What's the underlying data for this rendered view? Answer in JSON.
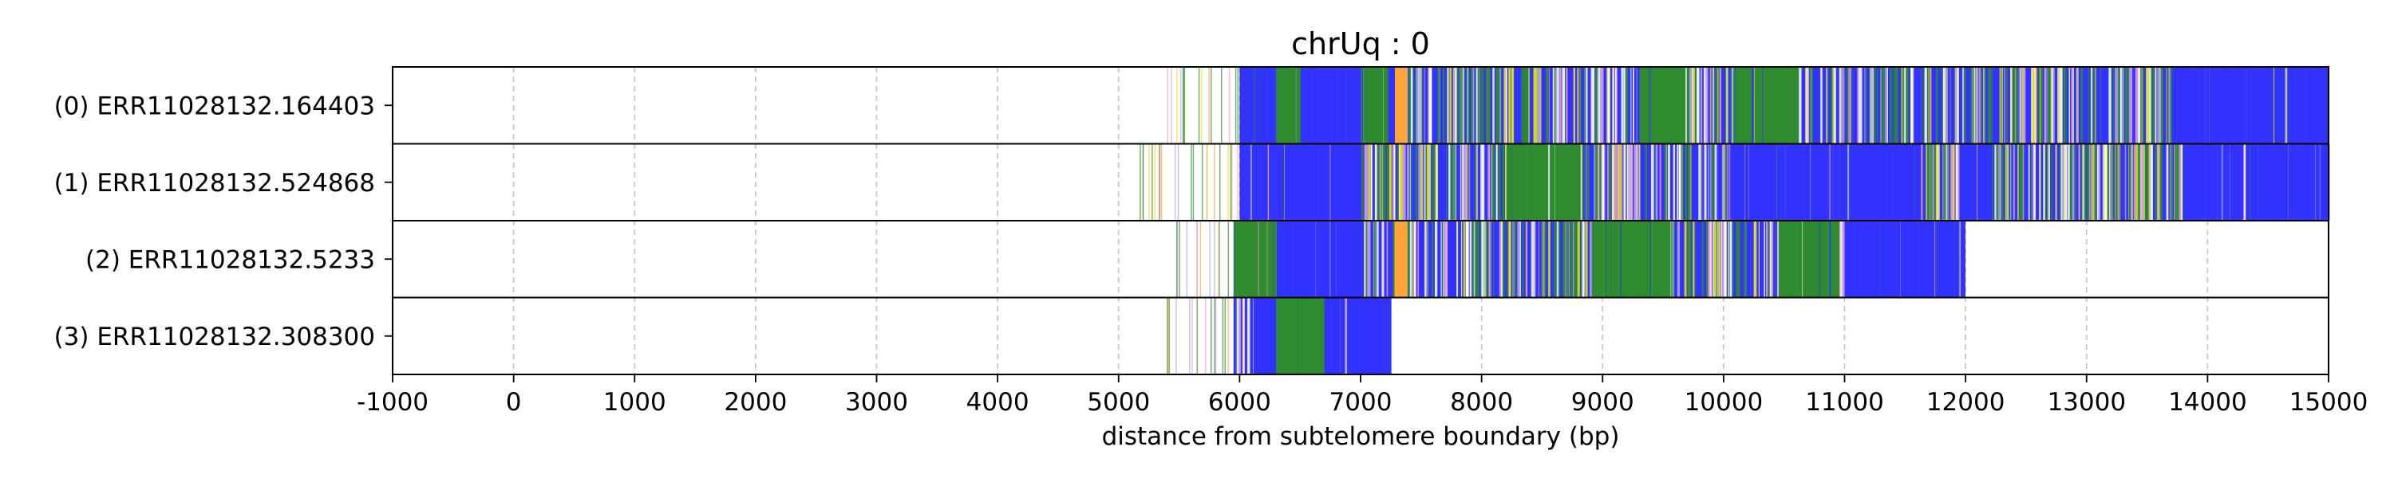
{
  "chart_data": {
    "type": "heatmap",
    "title": "chrUq : 0",
    "xlabel": "distance from subtelomere boundary (bp)",
    "ylabel": "",
    "xlim": [
      -1000,
      15000
    ],
    "xticks": [
      -1000,
      0,
      1000,
      2000,
      3000,
      4000,
      5000,
      6000,
      7000,
      8000,
      9000,
      10000,
      11000,
      12000,
      13000,
      14000,
      15000
    ],
    "grid": true,
    "rows": [
      {
        "label": "(0) ERR11028132.164403",
        "read_extent": [
          5400,
          15000
        ],
        "base_color_from": 6000,
        "segments": [
          {
            "from": 6000,
            "to": 6300,
            "color": "#3333ff"
          },
          {
            "from": 6300,
            "to": 6500,
            "color": "#2e8b2e"
          },
          {
            "from": 6500,
            "to": 7000,
            "color": "#3333ff"
          },
          {
            "from": 7000,
            "to": 7200,
            "color": "#2e8b2e"
          },
          {
            "from": 7280,
            "to": 7380,
            "color": "#ffa53a"
          },
          {
            "from": 9300,
            "to": 9700,
            "color": "#2e8b2e"
          },
          {
            "from": 10100,
            "to": 10600,
            "color": "#2e8b2e"
          },
          {
            "from": 13700,
            "to": 15000,
            "color": "#3333ff"
          }
        ]
      },
      {
        "label": "(1) ERR11028132.524868",
        "read_extent": [
          5100,
          15000
        ],
        "base_color_from": 6000,
        "segments": [
          {
            "from": 6000,
            "to": 7000,
            "color": "#3333ff"
          },
          {
            "from": 8200,
            "to": 8800,
            "color": "#2e8b2e"
          },
          {
            "from": 10050,
            "to": 11600,
            "color": "#3333ff"
          },
          {
            "from": 11950,
            "to": 12200,
            "color": "#3333ff"
          },
          {
            "from": 13800,
            "to": 15000,
            "color": "#3333ff"
          }
        ]
      },
      {
        "label": "(2) ERR11028132.5233",
        "read_extent": [
          5400,
          11980
        ],
        "base_color_from": 5950,
        "segments": [
          {
            "from": 5950,
            "to": 6300,
            "color": "#2e8b2e"
          },
          {
            "from": 6300,
            "to": 7000,
            "color": "#3333ff"
          },
          {
            "from": 7280,
            "to": 7380,
            "color": "#ffa53a"
          },
          {
            "from": 8900,
            "to": 9550,
            "color": "#2e8b2e"
          },
          {
            "from": 10450,
            "to": 10950,
            "color": "#2e8b2e"
          },
          {
            "from": 11000,
            "to": 11980,
            "color": "#3333ff"
          }
        ]
      },
      {
        "label": "(3) ERR11028132.308300",
        "read_extent": [
          5380,
          7230
        ],
        "base_color_from": 5950,
        "segments": [
          {
            "from": 6050,
            "to": 6300,
            "color": "#3333ff"
          },
          {
            "from": 6300,
            "to": 6700,
            "color": "#2e8b2e"
          },
          {
            "from": 6700,
            "to": 7230,
            "color": "#3333ff"
          }
        ]
      }
    ],
    "colors": {
      "dominant": "#3333ff",
      "green": "#2e8b2e",
      "orange": "#ffa53a",
      "yellow": "#e6e61a",
      "lavender": "#b8a0f0",
      "pink": "#f0a0d0",
      "white": "#ffffff",
      "grid": "#c8c8c8",
      "frame": "#000000"
    }
  }
}
